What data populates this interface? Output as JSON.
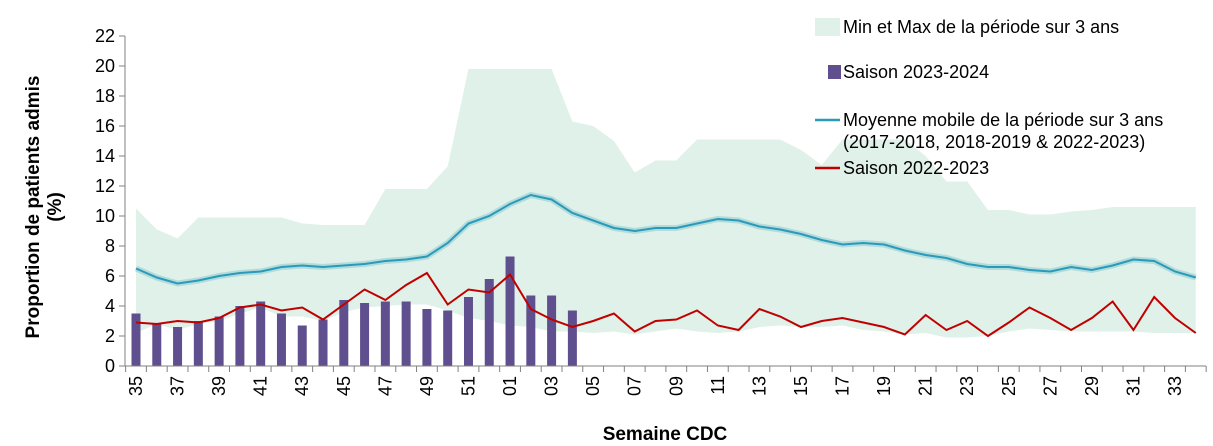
{
  "chart_data": {
    "type": "combo",
    "y_label": "Proportion de patients admis\n(%)",
    "x_label": "Semaine CDC",
    "categories": [
      "35",
      null,
      "37",
      null,
      "39",
      null,
      "41",
      null,
      "43",
      null,
      "45",
      null,
      "47",
      null,
      "49",
      null,
      "51",
      null,
      "01",
      null,
      "03",
      null,
      "05",
      null,
      "07",
      null,
      "09",
      null,
      "11",
      null,
      "13",
      null,
      "15",
      null,
      "17",
      null,
      "19",
      null,
      "21",
      null,
      "23",
      null,
      "25",
      null,
      "27",
      null,
      "29",
      null,
      "31",
      null,
      "33",
      null
    ],
    "ylim": [
      0,
      22
    ],
    "yticks": [
      0,
      2,
      4,
      6,
      8,
      10,
      12,
      14,
      16,
      18,
      20,
      22
    ],
    "grid": false,
    "series": [
      {
        "name": "Min et Max de la période sur 3 ans",
        "type": "area",
        "color": "#dff1e8",
        "high": [
          10.5,
          9.1,
          8.5,
          9.9,
          9.9,
          9.9,
          9.9,
          9.9,
          9.5,
          9.4,
          9.4,
          9.4,
          11.8,
          11.8,
          11.8,
          13.3,
          19.8,
          19.8,
          19.8,
          19.8,
          19.8,
          16.3,
          16.0,
          15.0,
          12.9,
          13.7,
          13.7,
          15.1,
          15.1,
          15.1,
          15.1,
          15.1,
          14.4,
          13.4,
          15.1,
          15.1,
          15.1,
          15.1,
          14.0,
          12.3,
          12.3,
          10.4,
          10.4,
          10.1,
          10.1,
          10.3,
          10.4,
          10.6,
          10.6,
          10.6,
          10.6,
          10.6
        ],
        "low": [
          2.2,
          2.8,
          2.4,
          2.8,
          3.0,
          3.5,
          3.9,
          3.3,
          3.3,
          3.0,
          3.6,
          3.9,
          4.0,
          4.1,
          4.1,
          3.7,
          3.2,
          3.0,
          2.7,
          2.6,
          2.3,
          2.3,
          2.2,
          2.3,
          2.1,
          2.3,
          2.5,
          2.3,
          2.2,
          2.3,
          2.6,
          2.7,
          2.6,
          2.6,
          2.7,
          2.4,
          2.3,
          2.1,
          2.2,
          1.9,
          1.9,
          2.0,
          2.3,
          2.5,
          2.4,
          2.3,
          2.3,
          2.3,
          2.3,
          2.2,
          2.2,
          2.2
        ]
      },
      {
        "name": "Saison 2023-2024",
        "type": "bar",
        "color": "#5f4f8e",
        "values": [
          3.5,
          2.8,
          2.6,
          3.0,
          3.3,
          4.0,
          4.3,
          3.5,
          2.7,
          3.1,
          4.4,
          4.2,
          4.3,
          4.3,
          3.8,
          3.7,
          4.6,
          5.8,
          7.3,
          4.7,
          4.7,
          3.7,
          null,
          null,
          null,
          null,
          null,
          null,
          null,
          null,
          null,
          null,
          null,
          null,
          null,
          null,
          null,
          null,
          null,
          null,
          null,
          null,
          null,
          null,
          null,
          null,
          null,
          null,
          null,
          null,
          null,
          null
        ]
      },
      {
        "name": "Moyenne mobile de la période sur 3 ans\n(2017-2018, 2018-2019 & 2022-2023)",
        "type": "line",
        "color": "#2a9ab8",
        "values": [
          6.5,
          5.9,
          5.5,
          5.7,
          6.0,
          6.2,
          6.3,
          6.6,
          6.7,
          6.6,
          6.7,
          6.8,
          7.0,
          7.1,
          7.3,
          8.2,
          9.5,
          10.0,
          10.8,
          11.4,
          11.1,
          10.2,
          9.7,
          9.2,
          9.0,
          9.2,
          9.2,
          9.5,
          9.8,
          9.7,
          9.3,
          9.1,
          8.8,
          8.4,
          8.1,
          8.2,
          8.1,
          7.7,
          7.4,
          7.2,
          6.8,
          6.6,
          6.6,
          6.4,
          6.3,
          6.6,
          6.4,
          6.7,
          7.1,
          7.0,
          6.3,
          5.9
        ]
      },
      {
        "name": "Saison 2022-2023",
        "type": "line",
        "color": "#c00000",
        "values": [
          2.9,
          2.8,
          3.0,
          2.9,
          3.2,
          3.9,
          4.1,
          3.7,
          3.9,
          3.1,
          4.1,
          5.1,
          4.4,
          5.4,
          6.2,
          4.1,
          5.1,
          4.9,
          6.1,
          3.8,
          3.1,
          2.6,
          3.0,
          3.5,
          2.3,
          3.0,
          3.1,
          3.7,
          2.7,
          2.4,
          3.8,
          3.3,
          2.6,
          3.0,
          3.2,
          2.9,
          2.6,
          2.1,
          3.4,
          2.4,
          3.0,
          2.0,
          2.9,
          3.9,
          3.2,
          2.4,
          3.2,
          4.3,
          2.4,
          4.6,
          3.2,
          2.2
        ]
      }
    ]
  }
}
